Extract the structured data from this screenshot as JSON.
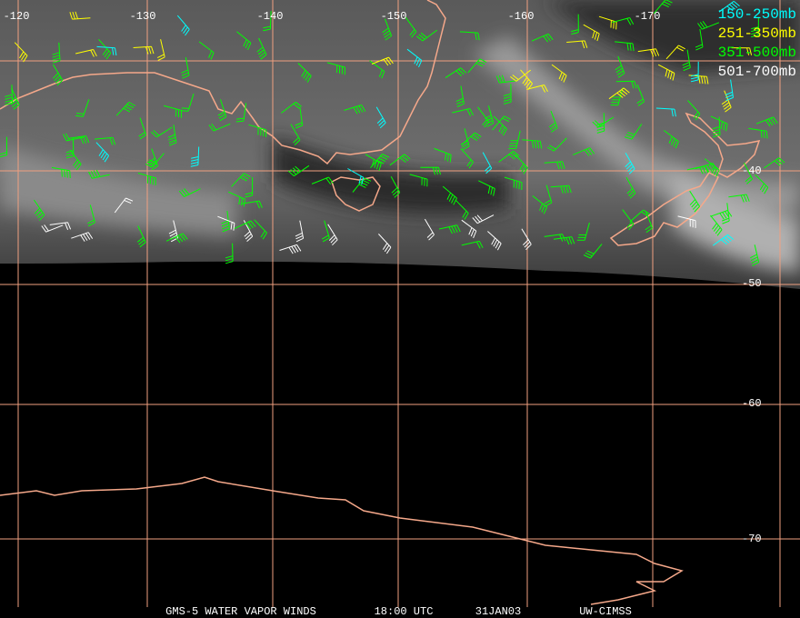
{
  "map": {
    "lon_labels": [
      "-120",
      "-130",
      "-140",
      "-150",
      "-160",
      "-170"
    ],
    "lat_labels": [
      "-40",
      "-50",
      "-60",
      "-70"
    ],
    "legend": [
      {
        "label": "150-250mb",
        "color": "#00ffff"
      },
      {
        "label": "251-350mb",
        "color": "#ffff00"
      },
      {
        "label": "351-500mb",
        "color": "#00ff00"
      },
      {
        "label": "501-700mb",
        "color": "#ffffff"
      }
    ],
    "footer": [
      "GMS-5 WATER VAPOR WINDS",
      "18:00 UTC",
      "31JAN03",
      "UW-CIMSS"
    ]
  }
}
